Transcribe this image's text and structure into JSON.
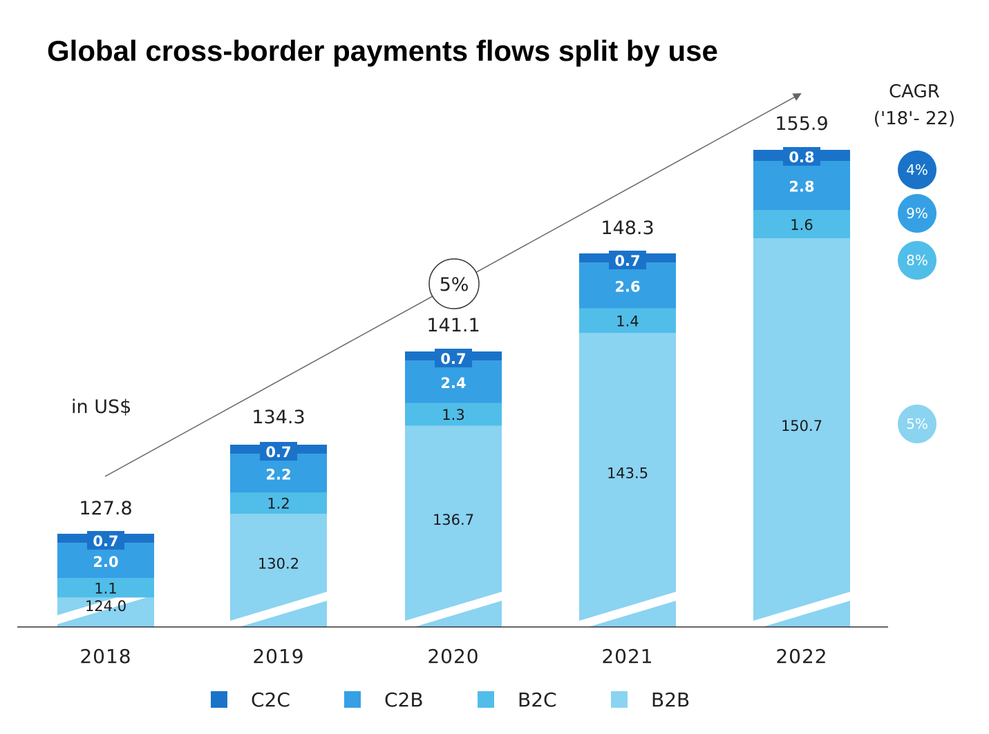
{
  "title": "Global cross-border payments flows split by use",
  "unit_note": "in US$",
  "trend_label": "5%",
  "cagr_header": [
    "CAGR",
    "('18'- 22)"
  ],
  "colors": {
    "C2C": "#1a73c9",
    "C2B": "#35a0e4",
    "B2C": "#50bee9",
    "B2B": "#8ad3f1",
    "break": "#ffffff",
    "axis": "#333333",
    "trend": "#666666"
  },
  "chart_data": {
    "type": "bar",
    "stacked": true,
    "title": "Global cross-border payments flows split by use",
    "ylabel": "in US$",
    "categories": [
      "2018",
      "2019",
      "2020",
      "2021",
      "2022"
    ],
    "series": [
      {
        "name": "B2B",
        "values": [
          124.0,
          130.2,
          136.7,
          143.5,
          150.7
        ],
        "labels": [
          "124.0",
          "130.2",
          "136.7",
          "143.5",
          "150.7"
        ],
        "cagr": "5%"
      },
      {
        "name": "B2C",
        "values": [
          1.1,
          1.2,
          1.3,
          1.4,
          1.6
        ],
        "labels": [
          "1.1",
          "1.2",
          "1.3",
          "1.4",
          "1.6"
        ],
        "cagr": "8%"
      },
      {
        "name": "C2B",
        "values": [
          2.0,
          2.2,
          2.4,
          2.6,
          2.8
        ],
        "labels": [
          "2.0",
          "2.2",
          "2.4",
          "2.6",
          "2.8"
        ],
        "cagr": "9%"
      },
      {
        "name": "C2C",
        "values": [
          0.7,
          0.7,
          0.7,
          0.7,
          0.8
        ],
        "labels": [
          "0.7",
          "0.7",
          "0.7",
          "0.7",
          "0.8"
        ],
        "cagr": "4%"
      }
    ],
    "totals": [
      127.8,
      134.3,
      141.1,
      148.3,
      155.9
    ],
    "total_labels": [
      "127.8",
      "134.3",
      "141.1",
      "148.3",
      "155.9"
    ],
    "axis_break": true,
    "total_cagr": "5%",
    "legend": [
      "C2C",
      "C2B",
      "B2C",
      "B2B"
    ],
    "legend_position": "bottom"
  }
}
